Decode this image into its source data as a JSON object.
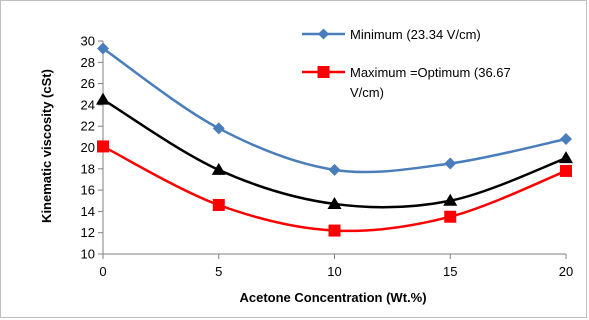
{
  "chart_data": {
    "type": "line",
    "title": "",
    "xlabel": "Acetone Concentration (Wt.%)",
    "ylabel": "Kinematic viscosity (cSt)",
    "x": [
      0,
      5,
      10,
      15,
      20
    ],
    "xlim": [
      0,
      20
    ],
    "ylim": [
      10,
      30
    ],
    "x_ticks": [
      0,
      5,
      10,
      15,
      20
    ],
    "y_ticks": [
      10,
      12,
      14,
      16,
      18,
      20,
      22,
      24,
      26,
      28,
      30
    ],
    "grid": false,
    "legend_position": "top-right",
    "series": [
      {
        "name": "Minimum (23.34 V/cm)",
        "values": [
          29.3,
          21.8,
          17.9,
          18.5,
          20.8
        ],
        "color": "#4a7ebb",
        "marker": "diamond"
      },
      {
        "name": "",
        "values": [
          24.5,
          17.9,
          14.7,
          15.0,
          19.0
        ],
        "color": "#000000",
        "marker": "triangle"
      },
      {
        "name": "Maximum =Optimum (36.67 V/cm)",
        "values": [
          20.1,
          14.6,
          12.2,
          13.5,
          17.8
        ],
        "color": "#ff0000",
        "marker": "square"
      }
    ],
    "legend": {
      "entry1": "Minimum (23.34 V/cm)",
      "entry2_line1": "Maximum =Optimum (36.67",
      "entry2_line2": "V/cm)"
    }
  }
}
